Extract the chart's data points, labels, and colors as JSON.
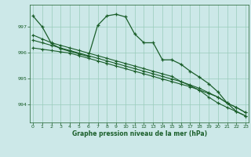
{
  "title": "Graphe pression niveau de la mer (hPa)",
  "bg_color": "#cce8e8",
  "grid_color": "#99ccbb",
  "line_color": "#1a5e2a",
  "x_ticks": [
    0,
    1,
    2,
    3,
    4,
    5,
    6,
    7,
    8,
    9,
    10,
    11,
    12,
    13,
    14,
    15,
    16,
    17,
    18,
    19,
    20,
    21,
    22,
    23
  ],
  "y_ticks": [
    994,
    995,
    996,
    997
  ],
  "ylim": [
    993.3,
    997.85
  ],
  "xlim": [
    -0.3,
    23.3
  ],
  "series1": [
    997.42,
    997.0,
    996.35,
    996.15,
    996.05,
    995.95,
    995.85,
    997.05,
    997.42,
    997.48,
    997.38,
    996.72,
    996.38,
    996.38,
    995.72,
    995.72,
    995.55,
    995.28,
    995.05,
    994.8,
    994.48,
    994.05,
    993.72,
    993.55
  ],
  "series2": [
    996.18,
    996.13,
    996.08,
    996.03,
    995.98,
    995.88,
    995.78,
    995.68,
    995.58,
    995.48,
    995.38,
    995.28,
    995.18,
    995.08,
    994.98,
    994.88,
    994.78,
    994.68,
    994.55,
    994.42,
    994.28,
    994.05,
    993.88,
    993.68
  ],
  "series3": [
    996.48,
    996.38,
    996.28,
    996.18,
    996.08,
    995.98,
    995.88,
    995.78,
    995.68,
    995.58,
    995.48,
    995.38,
    995.28,
    995.18,
    995.08,
    994.98,
    994.88,
    994.75,
    994.62,
    994.45,
    994.28,
    994.05,
    993.88,
    993.68
  ],
  "series4": [
    996.68,
    996.53,
    996.38,
    996.28,
    996.18,
    996.08,
    995.98,
    995.88,
    995.78,
    995.68,
    995.58,
    995.48,
    995.38,
    995.28,
    995.18,
    995.08,
    994.88,
    994.72,
    994.55,
    994.28,
    994.05,
    993.88,
    993.72,
    993.55
  ]
}
